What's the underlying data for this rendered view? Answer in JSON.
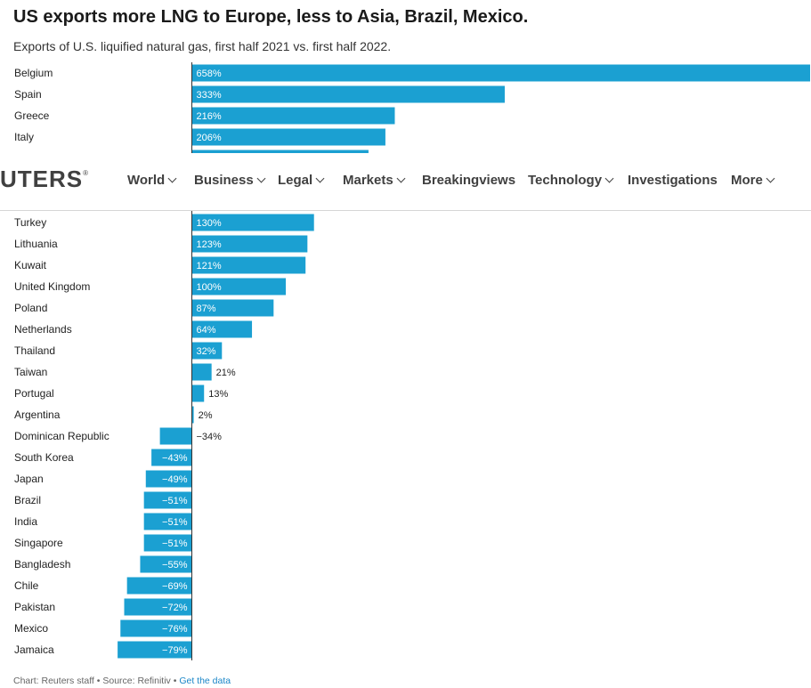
{
  "title": "US exports more LNG to Europe, less to Asia, Brazil, Mexico.",
  "subtitle": "Exports of U.S. liquified natural gas, first half 2021 vs. first half 2022.",
  "footer": {
    "credit": "Chart: Reuters staff • Source: Refinitiv • ",
    "link": "Get the data"
  },
  "nav": {
    "logo": "UTERS",
    "logo_mark": "®",
    "items": [
      {
        "label": "World",
        "dropdown": true
      },
      {
        "label": "Business",
        "dropdown": true
      },
      {
        "label": "Legal",
        "dropdown": true
      },
      {
        "label": "Markets",
        "dropdown": true
      },
      {
        "label": "Breakingviews",
        "dropdown": false
      },
      {
        "label": "Technology",
        "dropdown": true
      },
      {
        "label": "Investigations",
        "dropdown": false
      },
      {
        "label": "More",
        "dropdown": true
      }
    ]
  },
  "chart_data": {
    "type": "bar",
    "orientation": "horizontal",
    "bar_color": "#1ba0d2",
    "categories": [
      "Belgium",
      "Spain",
      "Greece",
      "Italy",
      "",
      "",
      "",
      "Turkey",
      "Lithuania",
      "Kuwait",
      "United Kingdom",
      "Poland",
      "Netherlands",
      "Thailand",
      "Taiwan",
      "Portugal",
      "Argentina",
      "Dominican Republic",
      "South Korea",
      "Japan",
      "Brazil",
      "India",
      "Singapore",
      "Bangladesh",
      "Chile",
      "Pakistan",
      "Mexico",
      "Jamaica"
    ],
    "values": [
      658,
      333,
      216,
      206,
      188,
      null,
      null,
      130,
      123,
      121,
      100,
      87,
      64,
      32,
      21,
      13,
      2,
      -34,
      -43,
      -49,
      -51,
      -51,
      -51,
      -55,
      -69,
      -72,
      -76,
      -79
    ],
    "labels": [
      "658%",
      "333%",
      "216%",
      "206%",
      "",
      "",
      "",
      "130%",
      "123%",
      "121%",
      "100%",
      "87%",
      "64%",
      "32%",
      "21%",
      "13%",
      "2%",
      "−34%",
      "−43%",
      "−49%",
      "−51%",
      "−51%",
      "−51%",
      "−55%",
      "−69%",
      "−72%",
      "−76%",
      "−79%"
    ],
    "units": "%"
  }
}
